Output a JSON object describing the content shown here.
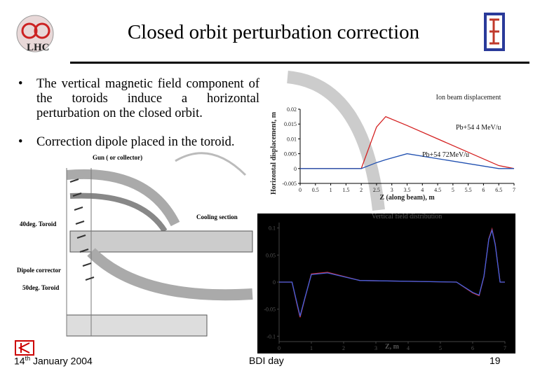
{
  "header": {
    "title": "Closed orbit perturbation correction",
    "logo_left": "LHC"
  },
  "bullets": [
    "The vertical magnetic field component of the toroids induce a horizontal perturbation on the closed orbit.",
    "Correction dipole placed in the toroid."
  ],
  "diagram": {
    "labels": [
      "Gun ( or collector)",
      "Cooling section",
      "40deg. Toroid",
      "Dipole corrector",
      "50deg. Toroid"
    ]
  },
  "footer": {
    "date_day": "14",
    "date_suffix": "th",
    "date_rest": "January 2004",
    "event": "BDI day",
    "page": "19"
  },
  "chart_data": [
    {
      "type": "line",
      "title": "Ion beam displacement",
      "xlabel": "Z (along beam), m",
      "ylabel": "Horizontal displacement, m",
      "x": [
        0,
        2,
        2.5,
        2.8,
        3.5,
        6.5,
        7
      ],
      "series": [
        {
          "name": "Pb+54 4 MeV/u",
          "color": "#d42020",
          "values": [
            0,
            0,
            0.014,
            0.0175,
            0.0145,
            0.001,
            0
          ]
        },
        {
          "name": "Pb+54 72MeV/u",
          "color": "#1f4fb0",
          "values": [
            0,
            0,
            0.002,
            0.003,
            0.005,
            0,
            0
          ]
        }
      ],
      "xlim": [
        0,
        7
      ],
      "xticks": [
        0,
        0.5,
        1,
        1.5,
        2,
        2.5,
        3,
        3.5,
        4,
        4.5,
        5,
        5.5,
        6,
        6.5,
        7
      ],
      "ylim": [
        -0.005,
        0.02
      ],
      "yticks": [
        -0.005,
        0,
        0.005,
        0.01,
        0.015,
        0.02
      ]
    },
    {
      "type": "line",
      "title": "Vertical field distribution",
      "xlabel": "Z, m",
      "x": [
        0,
        0.4,
        0.55,
        0.65,
        0.8,
        1.0,
        1.5,
        2.5,
        5.5,
        6.0,
        6.2,
        6.35,
        6.5,
        6.6,
        6.7,
        6.85,
        7
      ],
      "series": [
        {
          "color": "#e03030",
          "values": [
            0,
            0,
            -0.04,
            -0.065,
            -0.03,
            0.015,
            0.018,
            0.003,
            0,
            -0.02,
            -0.025,
            0.01,
            0.08,
            0.098,
            0.07,
            0,
            0
          ]
        },
        {
          "color": "#4060e0",
          "values": [
            0,
            0,
            -0.038,
            -0.063,
            -0.029,
            0.014,
            0.017,
            0.003,
            0,
            -0.019,
            -0.024,
            0.011,
            0.079,
            0.096,
            0.069,
            0,
            0
          ]
        }
      ],
      "xlim": [
        0,
        7
      ],
      "xticks": [
        0,
        1,
        2,
        3,
        4,
        5,
        6,
        7
      ],
      "ylim": [
        -0.11,
        0.11
      ],
      "yticks": [
        -0.1,
        -0.05,
        0,
        0.05,
        0.1
      ]
    }
  ]
}
